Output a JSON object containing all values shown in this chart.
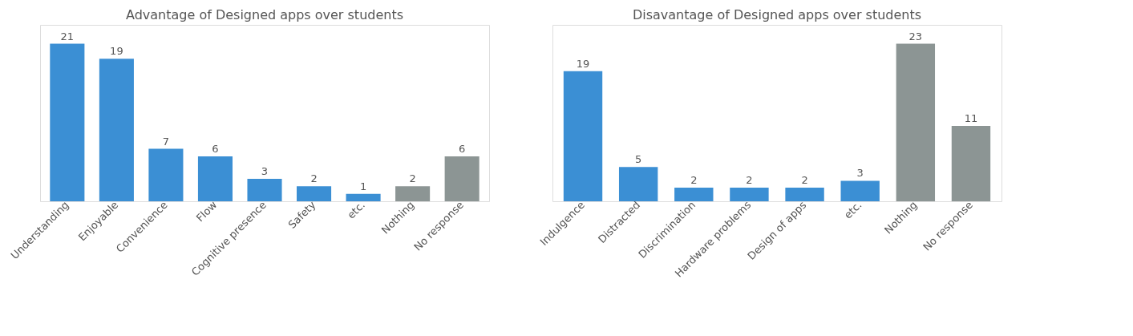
{
  "chart_data": [
    {
      "type": "bar",
      "title": "Advantage of Designed apps over students",
      "categories": [
        "Understanding",
        "Enjoyable",
        "Convenience",
        "Flow",
        "Cognitive presence",
        "Safety",
        "etc.",
        "Nothing",
        "No response"
      ],
      "values": [
        21,
        19,
        7,
        6,
        3,
        2,
        1,
        2,
        6
      ],
      "colors": [
        "#3b8fd4",
        "#3b8fd4",
        "#3b8fd4",
        "#3b8fd4",
        "#3b8fd4",
        "#3b8fd4",
        "#3b8fd4",
        "#8c9594",
        "#8c9594"
      ],
      "data_labels": true,
      "grid": false,
      "legend": false
    },
    {
      "type": "bar",
      "title": "Disavantage of Designed apps over students",
      "categories": [
        "Indulgence",
        "Distracted",
        "Discrimination",
        "Hardware problems",
        "Design of apps",
        "etc.",
        "Nothing",
        "No response"
      ],
      "values": [
        19,
        5,
        2,
        2,
        2,
        3,
        23,
        11
      ],
      "colors": [
        "#3b8fd4",
        "#3b8fd4",
        "#3b8fd4",
        "#3b8fd4",
        "#3b8fd4",
        "#3b8fd4",
        "#8c9594",
        "#8c9594"
      ],
      "data_labels": true,
      "grid": false,
      "legend": false
    }
  ]
}
